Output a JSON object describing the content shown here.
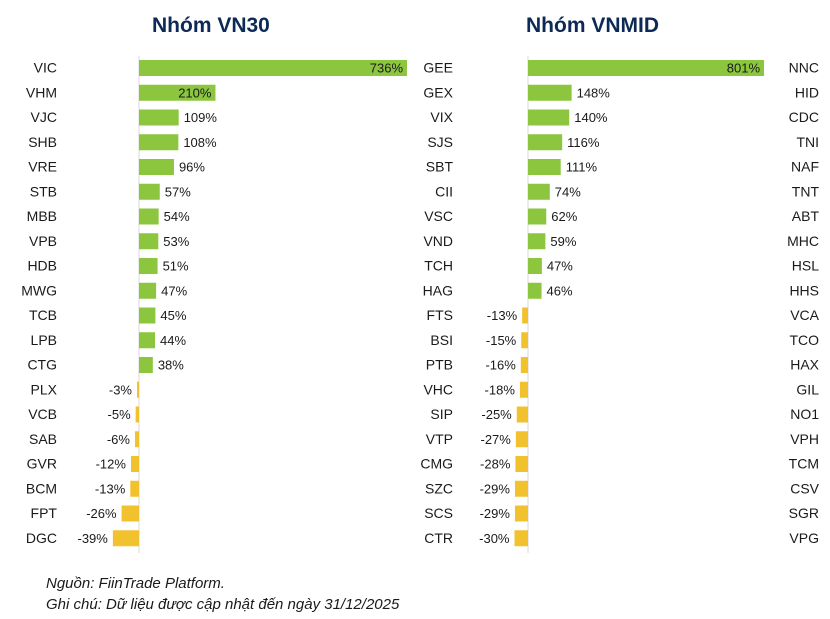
{
  "chart_data": [
    {
      "type": "bar",
      "orientation": "horizontal",
      "title": "Nhóm VN30",
      "categories": [
        "VIC",
        "VHM",
        "VJC",
        "SHB",
        "VRE",
        "STB",
        "MBB",
        "VPB",
        "HDB",
        "MWG",
        "TCB",
        "LPB",
        "CTG",
        "PLX",
        "VCB",
        "SAB",
        "GVR",
        "BCM",
        "FPT",
        "DGC"
      ],
      "values": [
        736,
        210,
        109,
        108,
        96,
        57,
        54,
        53,
        51,
        47,
        45,
        44,
        38,
        -3,
        -5,
        -6,
        -12,
        -13,
        -26,
        -39
      ],
      "unit": "%",
      "colors": {
        "positive": "#8cc63f",
        "negative": "#f2c12e"
      },
      "grid": false,
      "legend": "none"
    },
    {
      "type": "bar",
      "orientation": "horizontal",
      "title": "Nhóm VNMID",
      "categories_left": [
        "GEE",
        "GEX",
        "VIX",
        "SJS",
        "SBT",
        "CII",
        "VSC",
        "VND",
        "TCH",
        "HAG",
        "FTS",
        "BSI",
        "PTB",
        "VHC",
        "SIP",
        "VTP",
        "CMG",
        "SZC",
        "SCS",
        "CTR"
      ],
      "values_left": [
        null,
        148,
        140,
        116,
        111,
        74,
        62,
        59,
        47,
        46,
        -13,
        -15,
        -16,
        -18,
        -25,
        -27,
        -28,
        -29,
        -29,
        -30
      ],
      "categories_right": [
        "NNC",
        "HID",
        "CDC",
        "TNI",
        "NAF",
        "TNT",
        "ABT",
        "MHC",
        "HSL",
        "HHS",
        "VCA",
        "TCO",
        "HAX",
        "GIL",
        "NO1",
        "VPH",
        "TCM",
        "CSV",
        "SGR",
        "VPG"
      ],
      "values_right": [
        801,
        null,
        null,
        null,
        null,
        null,
        null,
        null,
        null,
        null,
        null,
        null,
        null,
        null,
        null,
        null,
        null,
        null,
        null,
        null
      ],
      "unit": "%",
      "colors": {
        "positive": "#8cc63f",
        "negative": "#f2c12e"
      },
      "grid": false,
      "legend": "none"
    }
  ],
  "footer": {
    "source": "Nguồn: FiinTrade Platform.",
    "note": "Ghi chú: Dữ liệu được cập nhật đến ngày 31/12/2025"
  }
}
